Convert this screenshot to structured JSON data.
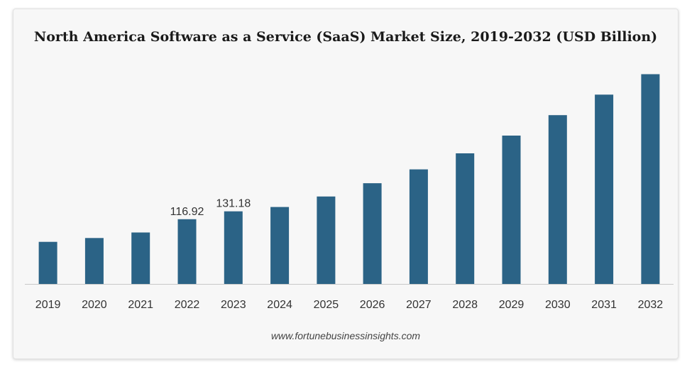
{
  "chart_data": {
    "type": "bar",
    "title": "North America Software as a Service (SaaS) Market Size, 2019-2032 (USD Billion)",
    "categories": [
      "2019",
      "2020",
      "2021",
      "2022",
      "2023",
      "2024",
      "2025",
      "2026",
      "2027",
      "2028",
      "2029",
      "2030",
      "2031",
      "2032"
    ],
    "values": [
      76,
      83,
      93,
      116.92,
      131.18,
      139,
      158,
      182,
      207,
      236,
      268,
      305,
      342,
      379
    ],
    "data_labels": {
      "3": "116.92",
      "4": "131.18"
    },
    "xlabel": "",
    "ylabel": "",
    "ylim": [
      0,
      400
    ],
    "grid": false,
    "legend": "none",
    "bar_color": "#2b6386"
  },
  "source": "www.fortunebusinessinsights.com",
  "colors": {
    "bar": "#2b6386",
    "axis": "#c8c8c8",
    "tick_text": "#333333",
    "label_text": "#333333"
  }
}
